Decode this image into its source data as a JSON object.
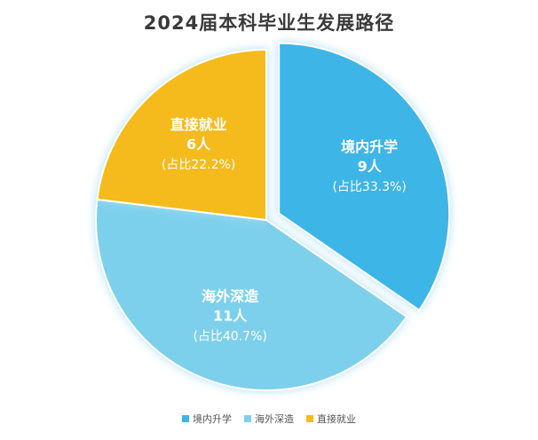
{
  "chart_data": {
    "type": "pie",
    "title": "2024届本科毕业生发展路径",
    "slices": [
      {
        "name": "境内升学",
        "value": 9,
        "unit": "人",
        "percent_label": "(占比33.3%)",
        "color": "#3db5e6",
        "exploded": true
      },
      {
        "name": "海外深造",
        "value": 11,
        "unit": "人",
        "percent_label": "(占比40.7%)",
        "color": "#7dd0ec",
        "exploded": false
      },
      {
        "name": "直接就业",
        "value": 6,
        "unit": "人",
        "percent_label": "(占比22.2%)",
        "color": "#f5bb1e",
        "exploded": false
      }
    ],
    "legend_position": "bottom-center"
  }
}
